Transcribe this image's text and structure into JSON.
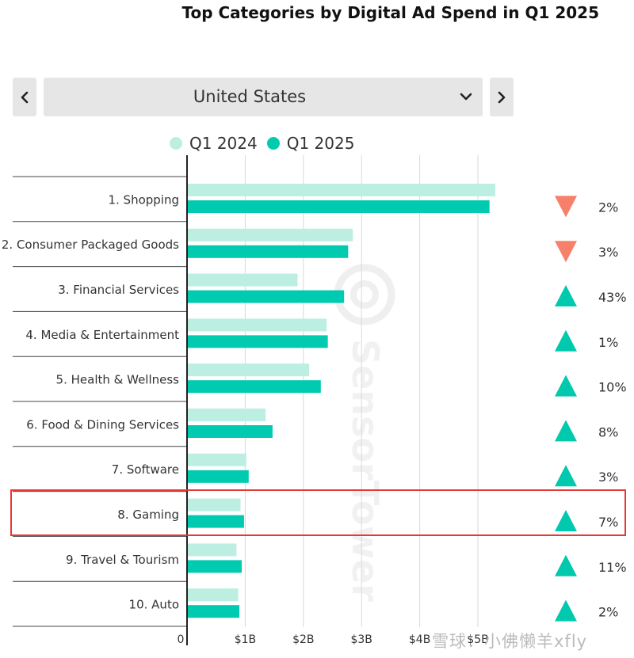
{
  "title": "Top Categories by Digital Ad Spend in Q1 2025",
  "selector": {
    "value": "United States"
  },
  "legend": {
    "q1_2024": "Q1 2024",
    "q1_2025": "Q1 2025"
  },
  "watermark": "SensorTower",
  "footer_watermark": "雪球：小佛懒羊xfly",
  "colors": {
    "q2024": "#bdeee2",
    "q2025": "#00cbb0",
    "up": "#00c9ad",
    "down": "#f7806a",
    "highlight": "#e53935"
  },
  "chart_data": {
    "type": "bar",
    "orientation": "horizontal",
    "title": "Top Categories by Digital Ad Spend in Q1 2025",
    "categories": [
      "1. Shopping",
      "2. Consumer Packaged Goods",
      "3. Financial Services",
      "4. Media & Entertainment",
      "5. Health & Wellness",
      "6. Food & Dining Services",
      "7. Software",
      "8. Gaming",
      "9. Travel & Tourism",
      "10. Auto"
    ],
    "series": [
      {
        "name": "Q1 2024",
        "values": [
          5.3,
          2.85,
          1.9,
          2.4,
          2.1,
          1.35,
          1.02,
          0.92,
          0.85,
          0.88
        ]
      },
      {
        "name": "Q1 2025",
        "values": [
          5.2,
          2.77,
          2.7,
          2.42,
          2.3,
          1.47,
          1.06,
          0.98,
          0.94,
          0.9
        ]
      }
    ],
    "changes": [
      {
        "direction": "down",
        "label": "2%"
      },
      {
        "direction": "down",
        "label": "3%"
      },
      {
        "direction": "up",
        "label": "43%"
      },
      {
        "direction": "up",
        "label": "1%"
      },
      {
        "direction": "up",
        "label": "10%"
      },
      {
        "direction": "up",
        "label": "8%"
      },
      {
        "direction": "up",
        "label": "3%"
      },
      {
        "direction": "up",
        "label": "7%"
      },
      {
        "direction": "up",
        "label": "11%"
      },
      {
        "direction": "up",
        "label": "2%"
      }
    ],
    "x_ticks": [
      0,
      1,
      2,
      3,
      4,
      5
    ],
    "x_tick_labels": [
      "0",
      "$1B",
      "$2B",
      "$3B",
      "$4B",
      "$5B"
    ],
    "xlim": [
      0,
      5.5
    ],
    "highlighted_category": "8. Gaming"
  }
}
